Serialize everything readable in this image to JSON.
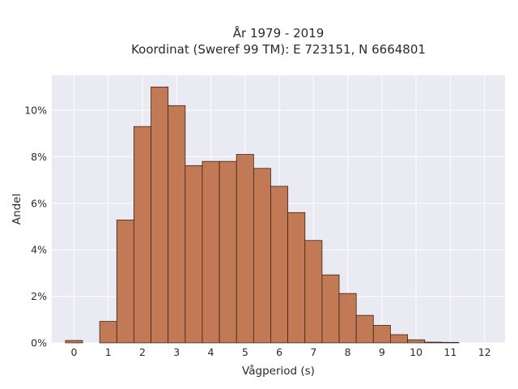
{
  "chart_data": {
    "type": "bar",
    "title_line1": "År 1979 - 2019",
    "title_line2": "Koordinat (Sweref 99 TM): E 723151, N 6664801",
    "xlabel": "Vågperiod (s)",
    "ylabel": "Andel",
    "x_ticks": [
      "0",
      "1",
      "2",
      "3",
      "4",
      "5",
      "6",
      "7",
      "8",
      "9",
      "10",
      "11",
      "12"
    ],
    "y_ticks": [
      {
        "value": 0,
        "label": "0%"
      },
      {
        "value": 2,
        "label": "2%"
      },
      {
        "value": 4,
        "label": "4%"
      },
      {
        "value": 6,
        "label": "6%"
      },
      {
        "value": 8,
        "label": "8%"
      },
      {
        "value": 10,
        "label": "10%"
      }
    ],
    "xlim": [
      -0.65,
      12.6
    ],
    "ylim": [
      0,
      11.5
    ],
    "bin_width": 0.5,
    "bins": [
      {
        "x": 0.0,
        "value": 0.1
      },
      {
        "x": 1.0,
        "value": 0.92
      },
      {
        "x": 1.5,
        "value": 5.28
      },
      {
        "x": 2.0,
        "value": 9.3
      },
      {
        "x": 2.5,
        "value": 11.0
      },
      {
        "x": 3.0,
        "value": 10.2
      },
      {
        "x": 3.5,
        "value": 7.62
      },
      {
        "x": 4.0,
        "value": 7.8
      },
      {
        "x": 4.5,
        "value": 7.8
      },
      {
        "x": 5.0,
        "value": 8.1
      },
      {
        "x": 5.5,
        "value": 7.5
      },
      {
        "x": 6.0,
        "value": 6.73
      },
      {
        "x": 6.5,
        "value": 5.6
      },
      {
        "x": 7.0,
        "value": 4.4
      },
      {
        "x": 7.5,
        "value": 2.92
      },
      {
        "x": 8.0,
        "value": 2.12
      },
      {
        "x": 8.5,
        "value": 1.18
      },
      {
        "x": 9.0,
        "value": 0.75
      },
      {
        "x": 9.5,
        "value": 0.35
      },
      {
        "x": 10.0,
        "value": 0.13
      },
      {
        "x": 10.5,
        "value": 0.03
      },
      {
        "x": 11.0,
        "value": 0.02
      }
    ],
    "grid": true,
    "colors": {
      "bar_fill": "#c17a55",
      "bar_edge": "#3b2416",
      "plot_bg": "#e9eaf2",
      "grid": "#ffffff"
    }
  }
}
